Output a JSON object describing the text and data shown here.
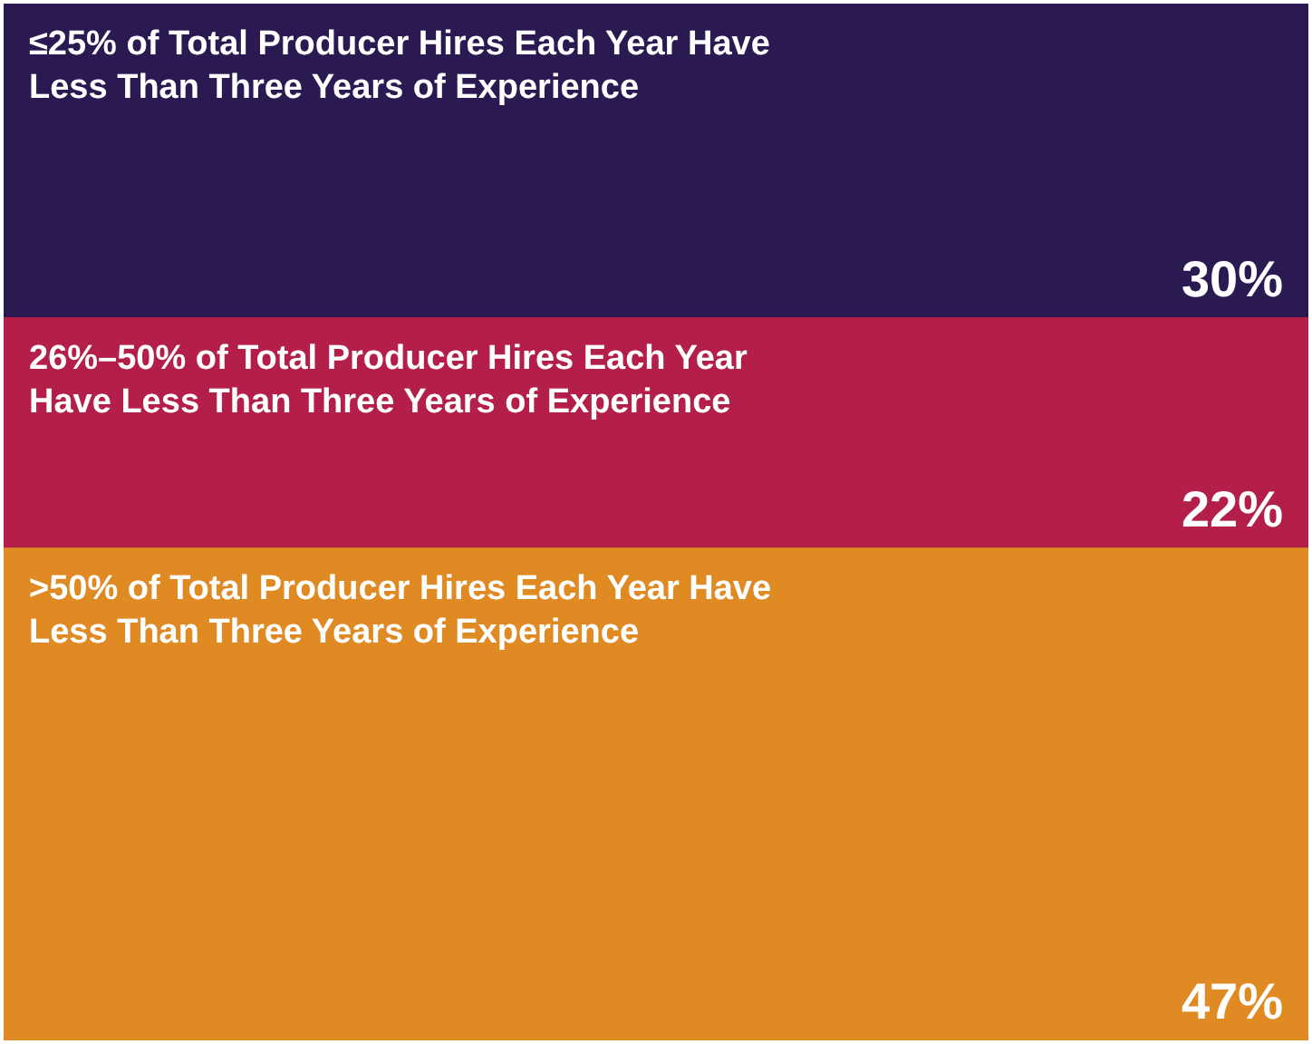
{
  "chart_data": {
    "type": "bar",
    "stacked": true,
    "categories": [
      null
    ],
    "legend": false,
    "series": [
      {
        "name": ">50% of Total Producer Hires Each Year Have Less Than Three Years of Experience",
        "color": "#e08a24",
        "values": [
          47
        ],
        "value_labels": [
          "47%"
        ]
      },
      {
        "name": "26%–50% of Total Producer Hires Each Year Have Less Than Three Years of Experience",
        "color": "#b31f48",
        "values": [
          22
        ],
        "value_labels": [
          "22%"
        ]
      },
      {
        "name": "≤25% of Total Producer Hires Each Year Have Less Than Three Years of Experience",
        "color": "#2b1a52",
        "values": [
          30
        ],
        "value_labels": [
          "30%"
        ]
      }
    ]
  }
}
